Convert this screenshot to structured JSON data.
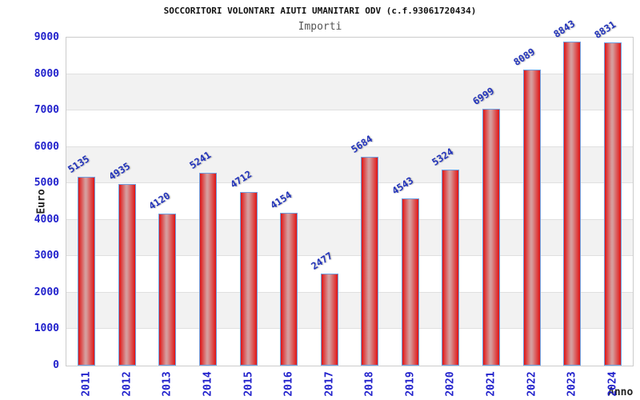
{
  "header": {
    "title": "SOCCORITORI VOLONTARI AIUTI UMANITARI ODV (c.f.93061720434)",
    "subtitle": "Importi"
  },
  "chart_data": {
    "type": "bar",
    "title": "SOCCORITORI VOLONTARI AIUTI UMANITARI ODV (c.f.93061720434)",
    "subtitle": "Importi",
    "xlabel": "Anno",
    "ylabel": "Euro",
    "categories": [
      "2011",
      "2012",
      "2013",
      "2014",
      "2015",
      "2016",
      "2017",
      "2018",
      "2019",
      "2020",
      "2021",
      "2022",
      "2023",
      "2024"
    ],
    "values": [
      5135,
      4935,
      4120,
      5241,
      4712,
      4154,
      2477,
      5684,
      4543,
      5324,
      6999,
      8089,
      8843,
      8831
    ],
    "ylim": [
      0,
      9000
    ],
    "yticks": [
      0,
      1000,
      2000,
      3000,
      4000,
      5000,
      6000,
      7000,
      8000,
      9000
    ],
    "grid": "banded-horizontal",
    "legend": "none",
    "bar_value_labels": "rotated-above-bars",
    "colors": {
      "bar_edge": "#e01414",
      "bar_center": "#d69c9c",
      "bar_border": "#6fa0e0",
      "tick_label": "#2222cc",
      "value_label": "#2233bb",
      "axis_title": "#222222",
      "title": "#111111",
      "subtitle": "#555555",
      "band": "#f2f2f2",
      "gridline": "#e0e0e0",
      "plot_border": "#cccccc",
      "background": "#ffffff"
    }
  }
}
